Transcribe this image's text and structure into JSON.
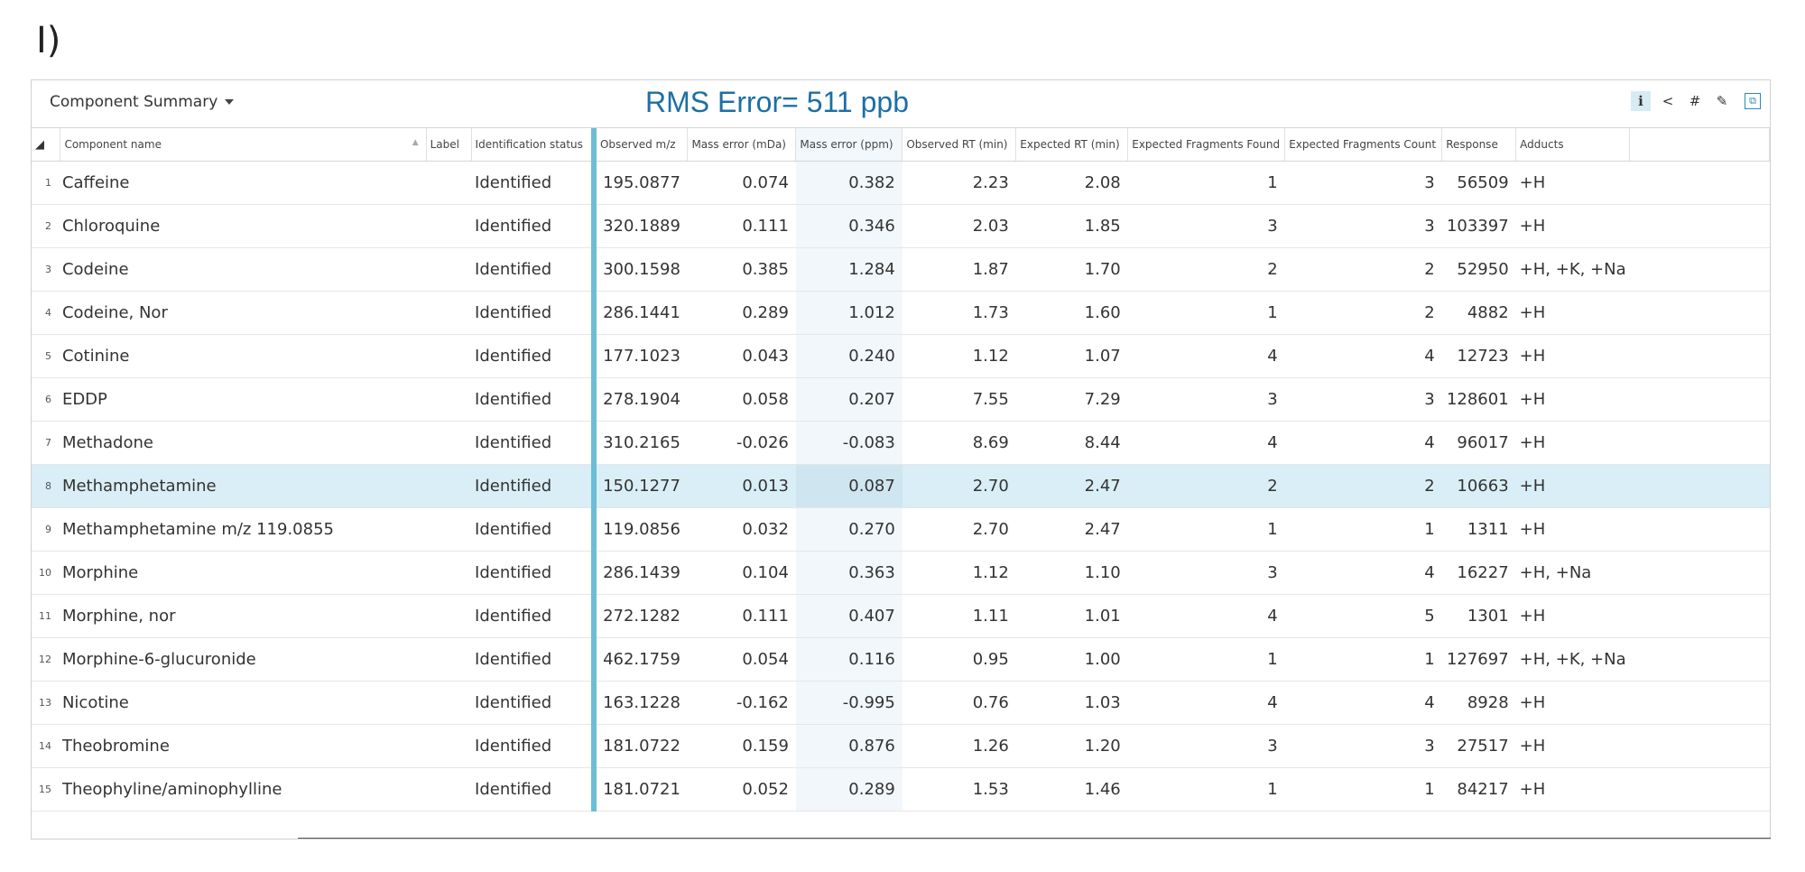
{
  "figure_label": "I)",
  "panel": {
    "title": "Component Summary",
    "rms_text": "RMS Error= 511 ppb",
    "toolbar_icons": [
      "info-icon",
      "share-icon",
      "hash-icon",
      "edit-icon",
      "popout-icon"
    ]
  },
  "columns": {
    "component_name": "Component name",
    "label": "Label",
    "identification_status": "Identification status",
    "observed_mz": "Observed m/z",
    "mass_error_mda": "Mass error (mDa)",
    "mass_error_ppm": "Mass error (ppm)",
    "observed_rt": "Observed RT (min)",
    "expected_rt": "Expected RT (min)",
    "fragments_found": "Expected Fragments Found",
    "fragments_count": "Expected Fragments Count",
    "response": "Response",
    "adducts": "Adducts"
  },
  "rows": [
    {
      "idx": "1",
      "name": "Caffeine",
      "label": "",
      "status": "Identified",
      "mz": "195.0877",
      "mda": "0.074",
      "ppm": "0.382",
      "obs_rt": "2.23",
      "exp_rt": "2.08",
      "found": "1",
      "count": "3",
      "response": "56509",
      "adducts": "+H"
    },
    {
      "idx": "2",
      "name": "Chloroquine",
      "label": "",
      "status": "Identified",
      "mz": "320.1889",
      "mda": "0.111",
      "ppm": "0.346",
      "obs_rt": "2.03",
      "exp_rt": "1.85",
      "found": "3",
      "count": "3",
      "response": "103397",
      "adducts": "+H"
    },
    {
      "idx": "3",
      "name": "Codeine",
      "label": "",
      "status": "Identified",
      "mz": "300.1598",
      "mda": "0.385",
      "ppm": "1.284",
      "obs_rt": "1.87",
      "exp_rt": "1.70",
      "found": "2",
      "count": "2",
      "response": "52950",
      "adducts": "+H, +K, +Na"
    },
    {
      "idx": "4",
      "name": "Codeine, Nor",
      "label": "",
      "status": "Identified",
      "mz": "286.1441",
      "mda": "0.289",
      "ppm": "1.012",
      "obs_rt": "1.73",
      "exp_rt": "1.60",
      "found": "1",
      "count": "2",
      "response": "4882",
      "adducts": "+H"
    },
    {
      "idx": "5",
      "name": "Cotinine",
      "label": "",
      "status": "Identified",
      "mz": "177.1023",
      "mda": "0.043",
      "ppm": "0.240",
      "obs_rt": "1.12",
      "exp_rt": "1.07",
      "found": "4",
      "count": "4",
      "response": "12723",
      "adducts": "+H"
    },
    {
      "idx": "6",
      "name": "EDDP",
      "label": "",
      "status": "Identified",
      "mz": "278.1904",
      "mda": "0.058",
      "ppm": "0.207",
      "obs_rt": "7.55",
      "exp_rt": "7.29",
      "found": "3",
      "count": "3",
      "response": "128601",
      "adducts": "+H"
    },
    {
      "idx": "7",
      "name": "Methadone",
      "label": "",
      "status": "Identified",
      "mz": "310.2165",
      "mda": "-0.026",
      "ppm": "-0.083",
      "obs_rt": "8.69",
      "exp_rt": "8.44",
      "found": "4",
      "count": "4",
      "response": "96017",
      "adducts": "+H"
    },
    {
      "idx": "8",
      "name": "Methamphetamine",
      "label": "",
      "status": "Identified",
      "mz": "150.1277",
      "mda": "0.013",
      "ppm": "0.087",
      "obs_rt": "2.70",
      "exp_rt": "2.47",
      "found": "2",
      "count": "2",
      "response": "10663",
      "adducts": "+H",
      "selected": true
    },
    {
      "idx": "9",
      "name": "Methamphetamine m/z 119.0855",
      "label": "",
      "status": "Identified",
      "mz": "119.0856",
      "mda": "0.032",
      "ppm": "0.270",
      "obs_rt": "2.70",
      "exp_rt": "2.47",
      "found": "1",
      "count": "1",
      "response": "1311",
      "adducts": "+H"
    },
    {
      "idx": "10",
      "name": "Morphine",
      "label": "",
      "status": "Identified",
      "mz": "286.1439",
      "mda": "0.104",
      "ppm": "0.363",
      "obs_rt": "1.12",
      "exp_rt": "1.10",
      "found": "3",
      "count": "4",
      "response": "16227",
      "adducts": "+H, +Na"
    },
    {
      "idx": "11",
      "name": "Morphine, nor",
      "label": "",
      "status": "Identified",
      "mz": "272.1282",
      "mda": "0.111",
      "ppm": "0.407",
      "obs_rt": "1.11",
      "exp_rt": "1.01",
      "found": "4",
      "count": "5",
      "response": "1301",
      "adducts": "+H"
    },
    {
      "idx": "12",
      "name": "Morphine-6-glucuronide",
      "label": "",
      "status": "Identified",
      "mz": "462.1759",
      "mda": "0.054",
      "ppm": "0.116",
      "obs_rt": "0.95",
      "exp_rt": "1.00",
      "found": "1",
      "count": "1",
      "response": "127697",
      "adducts": "+H, +K, +Na"
    },
    {
      "idx": "13",
      "name": "Nicotine",
      "label": "",
      "status": "Identified",
      "mz": "163.1228",
      "mda": "-0.162",
      "ppm": "-0.995",
      "obs_rt": "0.76",
      "exp_rt": "1.03",
      "found": "4",
      "count": "4",
      "response": "8928",
      "adducts": "+H"
    },
    {
      "idx": "14",
      "name": "Theobromine",
      "label": "",
      "status": "Identified",
      "mz": "181.0722",
      "mda": "0.159",
      "ppm": "0.876",
      "obs_rt": "1.26",
      "exp_rt": "1.20",
      "found": "3",
      "count": "3",
      "response": "27517",
      "adducts": "+H"
    },
    {
      "idx": "15",
      "name": "Theophyline/aminophylline",
      "label": "",
      "status": "Identified",
      "mz": "181.0721",
      "mda": "0.052",
      "ppm": "0.289",
      "obs_rt": "1.53",
      "exp_rt": "1.46",
      "found": "1",
      "count": "1",
      "response": "84217",
      "adducts": "+H"
    }
  ],
  "colors": {
    "selected_row": "#d9eef6",
    "separator": "#6bbed6",
    "rms_text": "#1d6fa5"
  }
}
